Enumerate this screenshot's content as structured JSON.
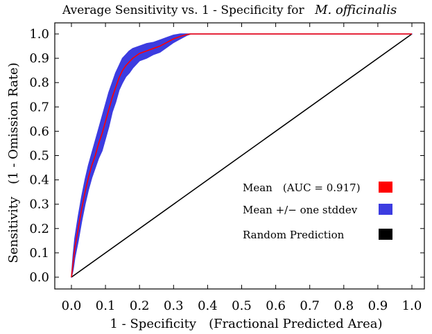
{
  "chart_data": {
    "type": "line",
    "title": "Average Sensitivity vs. 1 - Specificity for",
    "title_species": "M. officinalis",
    "xlabel": "1 - Specificity　(Fractional Predicted Area)",
    "ylabel": "Sensitivity　(1 - Omission Rate)",
    "xlim": [
      0,
      1
    ],
    "ylim": [
      0,
      1
    ],
    "x_ticks": [
      "0.0",
      "0.1",
      "0.2",
      "0.3",
      "0.4",
      "0.5",
      "0.6",
      "0.7",
      "0.8",
      "0.9",
      "1.0"
    ],
    "y_ticks": [
      "0.0",
      "0.1",
      "0.2",
      "0.3",
      "0.4",
      "0.5",
      "0.6",
      "0.7",
      "0.8",
      "0.9",
      "1.0"
    ],
    "grid": false,
    "legend_position": "bottom-right",
    "series": [
      {
        "name": "Mean　(AUC = 0.917)",
        "color": "#ff0000",
        "x": [
          0,
          0.005,
          0.01,
          0.02,
          0.03,
          0.04,
          0.05,
          0.06,
          0.07,
          0.08,
          0.09,
          0.1,
          0.11,
          0.12,
          0.13,
          0.14,
          0.15,
          0.16,
          0.17,
          0.18,
          0.19,
          0.2,
          0.22,
          0.24,
          0.26,
          0.28,
          0.3,
          0.32,
          0.34,
          0.35,
          0.4,
          0.5,
          0.6,
          0.7,
          0.8,
          0.9,
          1.0
        ],
        "y": [
          0,
          0.06,
          0.12,
          0.2,
          0.28,
          0.35,
          0.41,
          0.46,
          0.5,
          0.55,
          0.59,
          0.64,
          0.69,
          0.74,
          0.78,
          0.82,
          0.85,
          0.87,
          0.885,
          0.9,
          0.91,
          0.92,
          0.93,
          0.94,
          0.95,
          0.965,
          0.98,
          0.99,
          0.998,
          1.0,
          1.0,
          1.0,
          1.0,
          1.0,
          1.0,
          1.0,
          1.0
        ]
      },
      {
        "name": "Mean +/− one stddev",
        "color": "#3c3ce0",
        "band": true,
        "x": [
          0,
          0.005,
          0.01,
          0.02,
          0.03,
          0.04,
          0.05,
          0.06,
          0.07,
          0.08,
          0.09,
          0.1,
          0.11,
          0.12,
          0.13,
          0.14,
          0.15,
          0.16,
          0.17,
          0.18,
          0.19,
          0.2,
          0.22,
          0.24,
          0.26,
          0.28,
          0.3,
          0.32,
          0.34,
          0.35,
          0.4,
          0.5,
          0.6,
          0.7,
          0.8,
          0.9,
          1.0
        ],
        "upper": [
          0,
          0.09,
          0.16,
          0.25,
          0.33,
          0.4,
          0.46,
          0.51,
          0.56,
          0.61,
          0.66,
          0.71,
          0.76,
          0.8,
          0.84,
          0.87,
          0.9,
          0.915,
          0.93,
          0.94,
          0.945,
          0.95,
          0.96,
          0.965,
          0.975,
          0.985,
          0.995,
          1.0,
          1.0,
          1.0,
          1.0,
          1.0,
          1.0,
          1.0,
          1.0,
          1.0,
          1.0
        ],
        "lower": [
          0,
          0.03,
          0.08,
          0.15,
          0.23,
          0.3,
          0.36,
          0.41,
          0.45,
          0.49,
          0.52,
          0.57,
          0.62,
          0.68,
          0.72,
          0.77,
          0.8,
          0.825,
          0.84,
          0.86,
          0.875,
          0.89,
          0.9,
          0.915,
          0.925,
          0.945,
          0.965,
          0.98,
          0.995,
          1.0,
          1.0,
          1.0,
          1.0,
          1.0,
          1.0,
          1.0,
          1.0
        ]
      },
      {
        "name": "Random Prediction",
        "color": "#000000",
        "x": [
          0,
          1
        ],
        "y": [
          0,
          1
        ]
      }
    ]
  }
}
